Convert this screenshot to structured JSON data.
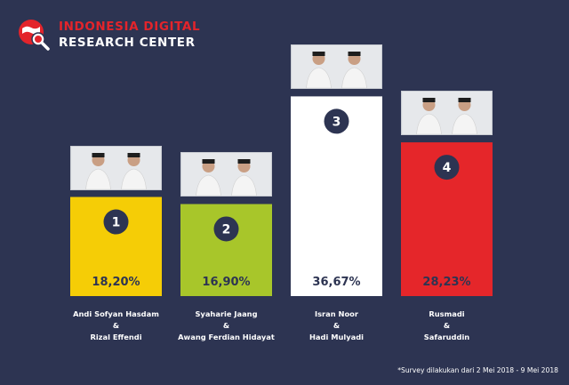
{
  "brand": {
    "line1": "INDONESIA DIGITAL",
    "line2": "RESEARCH CENTER",
    "accent_color": "#e3242b",
    "icon": "globe-magnifier-icon"
  },
  "chart_data": {
    "type": "bar",
    "title": "",
    "xlabel": "",
    "ylabel": "",
    "ylim": [
      0,
      40
    ],
    "categories": [
      [
        "Andi Sofyan Hasdam",
        "&",
        "Rizal Effendi"
      ],
      [
        "Syaharie Jaang",
        "&",
        "Awang Ferdian Hidayat"
      ],
      [
        "Isran Noor",
        "&",
        "Hadi Mulyadi"
      ],
      [
        "Rusmadi",
        "&",
        "Safaruddin"
      ]
    ],
    "values": [
      18.2,
      16.9,
      36.67,
      28.23
    ],
    "value_labels": [
      "18,20%",
      "16,90%",
      "36,67%",
      "28,23%"
    ],
    "ranks": [
      "1",
      "2",
      "3",
      "4"
    ],
    "colors": [
      "#f5cd06",
      "#a8c62a",
      "#ffffff",
      "#e5262a"
    ],
    "value_colors": [
      "#2d3452",
      "#2d3452",
      "#2d3452",
      "#2d3452"
    ],
    "grid": false,
    "legend": "none"
  },
  "footnote": "*Survey dilakukan dari 2 Mei 2018 - 9 Mei 2018"
}
